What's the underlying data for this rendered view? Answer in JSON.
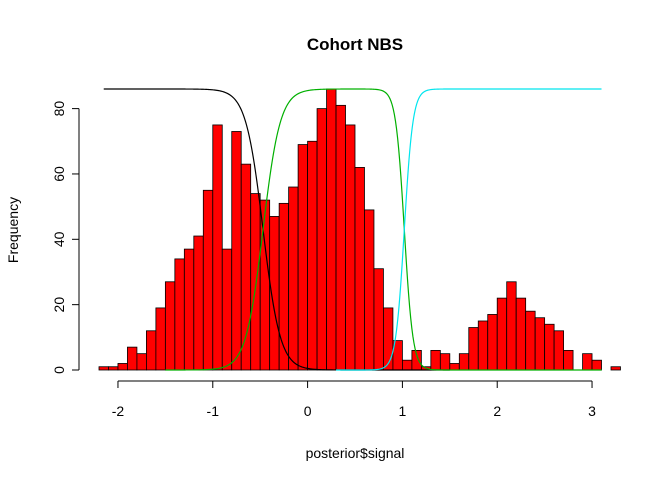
{
  "chart_data": {
    "type": "bar",
    "title": "Cohort NBS",
    "xlabel": "posterior$signal",
    "ylabel": "Frequency",
    "xlim": [
      -2.2,
      3.2
    ],
    "ylim": [
      0,
      86
    ],
    "x_ticks": [
      -2,
      -1,
      0,
      1,
      2,
      3
    ],
    "y_ticks": [
      0,
      20,
      40,
      60,
      80
    ],
    "bar_color": "#ff0000",
    "bar_edge_color": "#000000",
    "bins": {
      "start": -2.2,
      "width": 0.1,
      "counts": [
        1,
        1,
        2,
        7,
        5,
        12,
        19,
        27,
        34,
        37,
        41,
        55,
        75,
        37,
        73,
        63,
        54,
        52,
        47,
        51,
        56,
        69,
        70,
        80,
        86,
        81,
        75,
        62,
        49,
        31,
        19,
        9,
        3,
        6,
        1,
        6,
        5,
        2,
        5,
        13,
        15,
        17,
        22,
        27,
        22,
        18,
        16,
        14,
        12,
        6,
        0,
        5,
        3,
        0,
        1
      ]
    },
    "series": [
      {
        "name": "black-curve",
        "color": "#000000",
        "kind": "falling",
        "center": -0.47,
        "steepness": 11,
        "max": 86,
        "x_start": -2.15,
        "x_end": 1.5
      },
      {
        "name": "green-curve",
        "color": "#00b000",
        "kind": "bump",
        "rise_center": -0.47,
        "rise_steepness": 11,
        "fall_center": 1.02,
        "fall_steepness": 22,
        "max": 86,
        "x_start": -1.5,
        "x_end": 3.1
      },
      {
        "name": "cyan-curve",
        "color": "#00e5ee",
        "kind": "rising",
        "center": 1.02,
        "steepness": 22,
        "max": 86,
        "x_start": 0.3,
        "x_end": 3.1
      }
    ]
  }
}
